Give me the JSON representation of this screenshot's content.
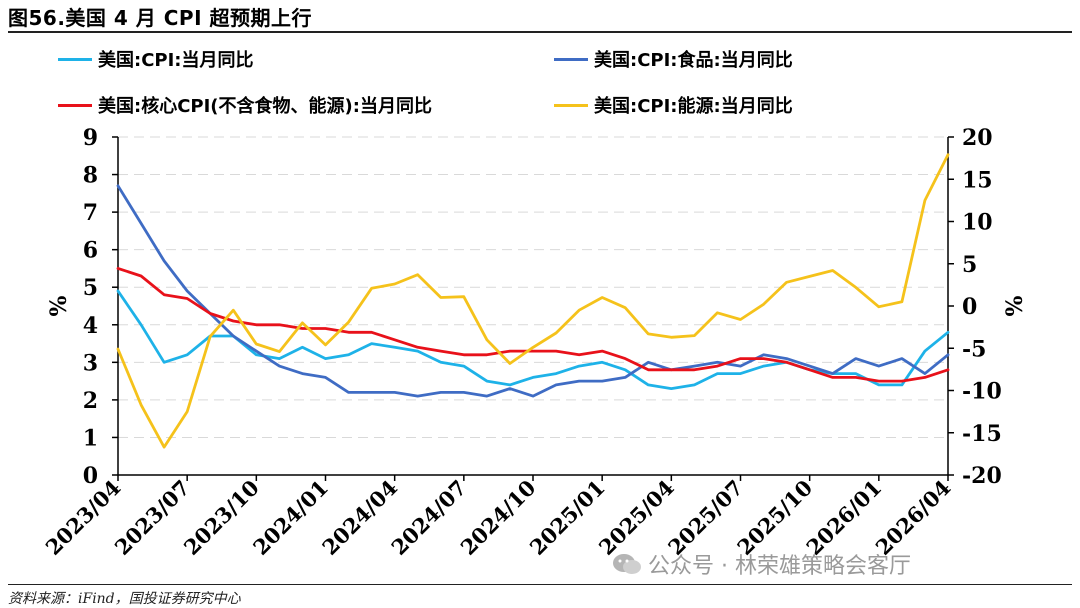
{
  "header": {
    "title": "图56.美国 4 月 CPI 超预期上行"
  },
  "footer": {
    "source": "资料来源：iFind，国投证券研究中心"
  },
  "watermark": {
    "text": "公众号 · 林荣雄策略会客厅"
  },
  "colors": {
    "cpi": "#1EB2E8",
    "food": "#3F6CC4",
    "core": "#E8111A",
    "energy": "#F5C21B"
  },
  "chart_data": {
    "type": "line",
    "left_axis": {
      "label": "%",
      "ylim": [
        0,
        9
      ],
      "ticks": [
        "0",
        "1",
        "2",
        "3",
        "4",
        "5",
        "6",
        "7",
        "8",
        "9"
      ]
    },
    "right_axis": {
      "label": "%",
      "ylim": [
        -20,
        20
      ],
      "ticks": [
        "-20",
        "-15",
        "-10",
        "-5",
        "0",
        "5",
        "10",
        "15",
        "20"
      ]
    },
    "x": [
      "2023/04",
      "2023/05",
      "2023/06",
      "2023/07",
      "2023/08",
      "2023/09",
      "2023/10",
      "2023/11",
      "2023/12",
      "2024/01",
      "2024/02",
      "2024/03",
      "2024/04",
      "2024/05",
      "2024/06",
      "2024/07",
      "2024/08",
      "2024/09",
      "2024/10",
      "2024/11",
      "2024/12",
      "2025/01",
      "2025/02",
      "2025/03",
      "2025/04",
      "2025/05",
      "2025/06",
      "2025/07",
      "2025/08",
      "2025/09",
      "2025/10",
      "2025/11",
      "2025/12",
      "2026/01",
      "2026/02",
      "2026/03",
      "2026/04"
    ],
    "xtick_labels": [
      "2023/04",
      "2023/07",
      "2023/10",
      "2024/01",
      "2024/04",
      "2024/07",
      "2024/10",
      "2025/01",
      "2025/04",
      "2025/07",
      "2025/10",
      "2026/01",
      "2026/04"
    ],
    "series": [
      {
        "key": "cpi",
        "name": "美国:CPI:当月同比",
        "axis": "left",
        "values": [
          4.9,
          4.0,
          3.0,
          3.2,
          3.7,
          3.7,
          3.2,
          3.1,
          3.4,
          3.1,
          3.2,
          3.5,
          3.4,
          3.3,
          3.0,
          2.9,
          2.5,
          2.4,
          2.6,
          2.7,
          2.9,
          3.0,
          2.8,
          2.4,
          2.3,
          2.4,
          2.7,
          2.7,
          2.9,
          3.0,
          2.8,
          2.7,
          2.7,
          2.4,
          2.4,
          3.3,
          3.8
        ]
      },
      {
        "key": "food",
        "name": "美国:CPI:食品:当月同比",
        "axis": "left",
        "values": [
          7.7,
          6.7,
          5.7,
          4.9,
          4.3,
          3.7,
          3.3,
          2.9,
          2.7,
          2.6,
          2.2,
          2.2,
          2.2,
          2.1,
          2.2,
          2.2,
          2.1,
          2.3,
          2.1,
          2.4,
          2.5,
          2.5,
          2.6,
          3.0,
          2.8,
          2.9,
          3.0,
          2.9,
          3.2,
          3.1,
          2.9,
          2.7,
          3.1,
          2.9,
          3.1,
          2.7,
          3.2
        ]
      },
      {
        "key": "core",
        "name": "美国:核心CPI(不含食物、能源):当月同比",
        "axis": "left",
        "values": [
          5.5,
          5.3,
          4.8,
          4.7,
          4.3,
          4.1,
          4.0,
          4.0,
          3.9,
          3.9,
          3.8,
          3.8,
          3.6,
          3.4,
          3.3,
          3.2,
          3.2,
          3.3,
          3.3,
          3.3,
          3.2,
          3.3,
          3.1,
          2.8,
          2.8,
          2.8,
          2.9,
          3.1,
          3.1,
          3.0,
          2.8,
          2.6,
          2.6,
          2.5,
          2.5,
          2.6,
          2.8
        ]
      },
      {
        "key": "energy",
        "name": "美国:CPI:能源:当月同比",
        "axis": "right",
        "values": [
          -5.1,
          -11.7,
          -16.7,
          -12.5,
          -3.6,
          -0.5,
          -4.5,
          -5.4,
          -2.0,
          -4.6,
          -1.9,
          2.1,
          2.6,
          3.7,
          1.0,
          1.1,
          -4.0,
          -6.8,
          -4.9,
          -3.2,
          -0.5,
          1.0,
          -0.2,
          -3.3,
          -3.7,
          -3.5,
          -0.8,
          -1.6,
          0.2,
          2.8,
          3.5,
          4.2,
          2.2,
          -0.1,
          0.5,
          12.5,
          17.9
        ]
      }
    ]
  }
}
